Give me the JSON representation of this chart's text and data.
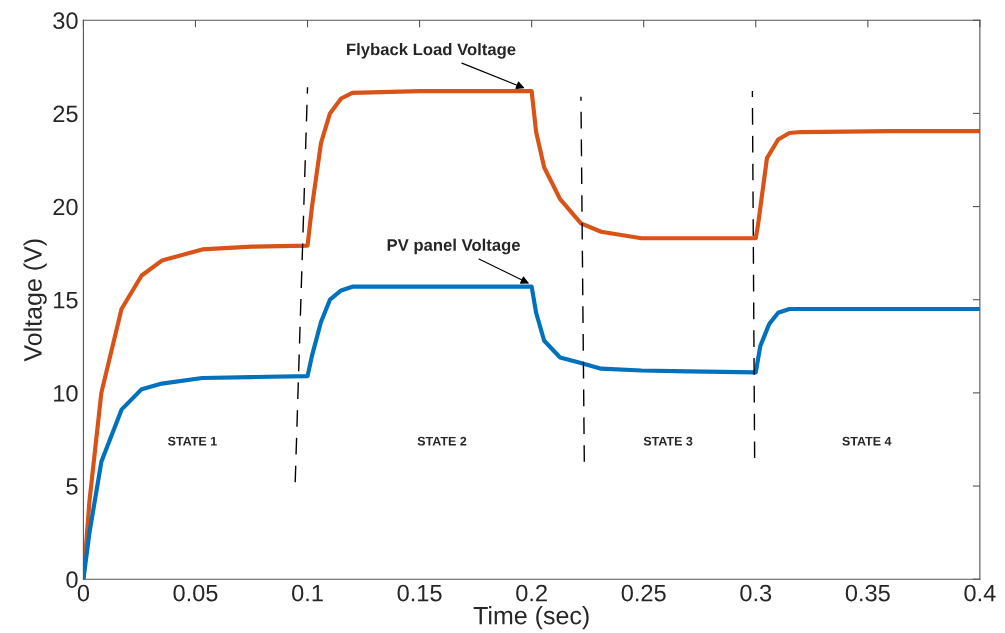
{
  "chart_data": {
    "type": "line",
    "xlabel": "Time (sec)",
    "ylabel": "Voltage (V)",
    "xlim": [
      0,
      0.4
    ],
    "ylim": [
      0,
      30
    ],
    "xticks": [
      0,
      0.05,
      0.1,
      0.15,
      0.2,
      0.25,
      0.3,
      0.35,
      0.4
    ],
    "yticks": [
      0,
      5,
      10,
      15,
      20,
      25,
      30
    ],
    "grid": false,
    "legend": false,
    "series": [
      {
        "color": "#d95319",
        "x": [
          0,
          0.0027,
          0.008,
          0.017,
          0.026,
          0.035,
          0.053,
          0.075,
          0.1,
          0.102,
          0.106,
          0.11,
          0.115,
          0.12,
          0.15,
          0.2,
          0.202,
          0.2056,
          0.2127,
          0.222,
          0.231,
          0.249,
          0.27,
          0.3,
          0.301,
          0.305,
          0.31,
          0.315,
          0.32,
          0.36,
          0.4
        ],
        "values": [
          0,
          4.2,
          10,
          14.5,
          16.3,
          17.1,
          17.7,
          17.85,
          17.9,
          20,
          23.4,
          25,
          25.8,
          26.1,
          26.2,
          26.2,
          24,
          22.1,
          20.4,
          19.1,
          18.65,
          18.3,
          18.3,
          18.3,
          19,
          22.6,
          23.6,
          23.95,
          24,
          24.05,
          24.05
        ]
      },
      {
        "color": "#0072bd",
        "x": [
          0,
          0.0027,
          0.008,
          0.017,
          0.026,
          0.035,
          0.053,
          0.075,
          0.1,
          0.102,
          0.106,
          0.11,
          0.115,
          0.12,
          0.15,
          0.2,
          0.202,
          0.2056,
          0.2127,
          0.222,
          0.231,
          0.249,
          0.27,
          0.3,
          0.302,
          0.306,
          0.31,
          0.315,
          0.32,
          0.36,
          0.4
        ],
        "values": [
          0,
          2.5,
          6.3,
          9.1,
          10.2,
          10.5,
          10.8,
          10.85,
          10.9,
          12,
          13.8,
          15,
          15.5,
          15.7,
          15.7,
          15.7,
          14.3,
          12.8,
          11.9,
          11.6,
          11.3,
          11.2,
          11.15,
          11.1,
          12.5,
          13.7,
          14.3,
          14.5,
          14.5,
          14.5,
          14.5
        ]
      },
      {
        "color": "#000000",
        "line_style": "dashed",
        "x": [
          0.0945,
          0.1
        ],
        "values": [
          5.2,
          26.4
        ]
      },
      {
        "color": "#000000",
        "line_style": "dashed",
        "x": [
          0.2235,
          0.222
        ],
        "values": [
          6.3,
          25.9
        ]
      },
      {
        "color": "#000000",
        "line_style": "dashed",
        "x": [
          0.2995,
          0.2985
        ],
        "values": [
          6.5,
          26.2
        ]
      }
    ],
    "annotations": [
      {
        "text": "Flyback Load Voltage",
        "x": 0.198,
        "y": 26.3
      },
      {
        "text": "PV panel Voltage",
        "x": 0.2,
        "y": 15.8
      },
      "STATE 1",
      "STATE 2",
      "STATE 3",
      "STATE 4"
    ]
  }
}
